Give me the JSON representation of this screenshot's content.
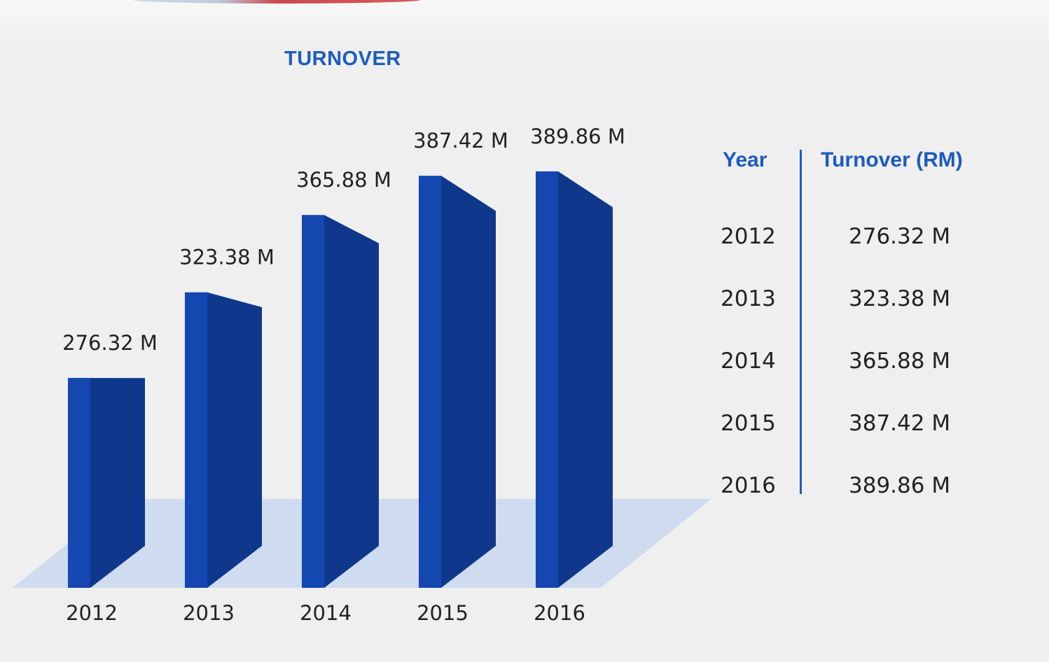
{
  "title": "TURNOVER",
  "colors": {
    "title": "#1d5bbf",
    "bar_front": "#1447b0",
    "bar_side": "#0f388c",
    "floor": "#cfdcf0",
    "label": "#222222"
  },
  "table": {
    "headers": {
      "year": "Year",
      "turnover": "Turnover (RM)"
    },
    "rows": [
      {
        "year": "2012",
        "value": "276.32 M"
      },
      {
        "year": "2013",
        "value": "323.38 M"
      },
      {
        "year": "2014",
        "value": "365.88 M"
      },
      {
        "year": "2015",
        "value": "387.42 M"
      },
      {
        "year": "2016",
        "value": "389.86 M"
      }
    ]
  },
  "chart_data": {
    "type": "bar",
    "title": "TURNOVER",
    "categories": [
      "2012",
      "2013",
      "2014",
      "2015",
      "2016"
    ],
    "values": [
      276.32,
      323.38,
      365.88,
      387.42,
      389.86
    ],
    "value_labels": [
      "276.32 M",
      "323.38 M",
      "365.88 M",
      "387.42 M",
      "389.86 M"
    ],
    "unit": "M",
    "grid": false,
    "legend": "none"
  }
}
